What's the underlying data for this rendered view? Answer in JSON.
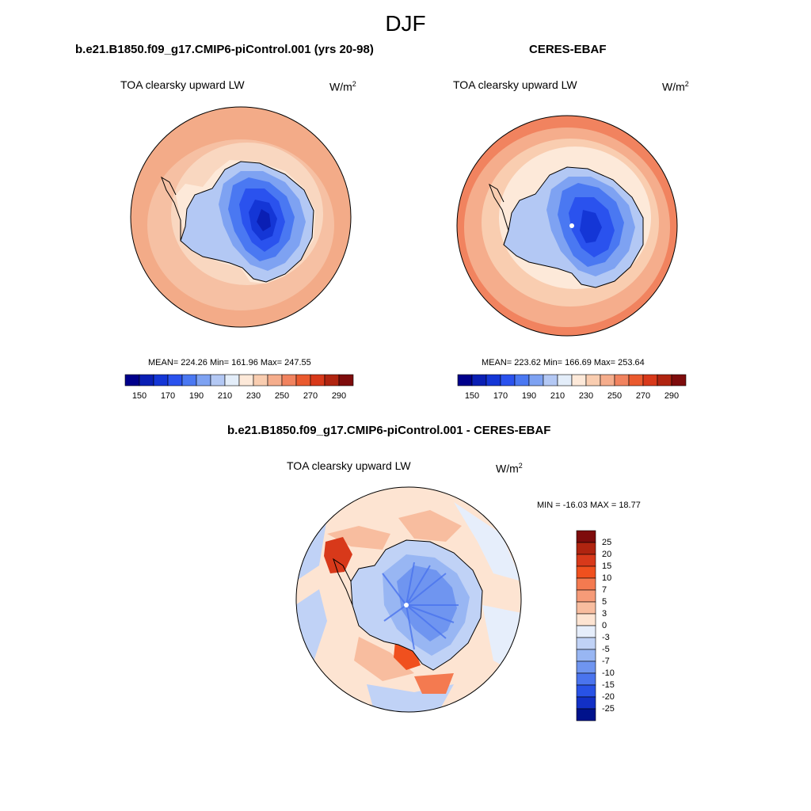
{
  "page_title": "DJF",
  "panels": [
    {
      "title": "b.e21.B1850.f09_g17.CMIP6-piControl.001 (yrs 20-98)",
      "subtitle": "TOA clearsky upward LW",
      "units": "W/m",
      "units_exp": "2",
      "stats": "MEAN= 224.26  Min= 161.96  Max= 247.55"
    },
    {
      "title": "CERES-EBAF",
      "subtitle": "TOA clearsky upward LW",
      "units": "W/m",
      "units_exp": "2",
      "stats": "MEAN= 223.62  Min= 166.69  Max= 253.64"
    },
    {
      "title": "b.e21.B1850.f09_g17.CMIP6-piControl.001 - CERES-EBAF",
      "subtitle": "TOA clearsky upward LW",
      "units": "W/m",
      "units_exp": "2",
      "stats": "MIN = -16.03 MAX =  18.77"
    }
  ],
  "abs_colorbar": {
    "labels": [
      "150",
      "170",
      "190",
      "210",
      "230",
      "250",
      "270",
      "290"
    ],
    "colors": [
      "#00008b",
      "#0a1fb4",
      "#1436d6",
      "#2a52ee",
      "#4a78f2",
      "#7ea2f2",
      "#b3c8f4",
      "#e3edf9",
      "#fde9d9",
      "#f9cdb0",
      "#f5ad8c",
      "#f1835f",
      "#ea5a2e",
      "#d8391a",
      "#b02410",
      "#7e0c0c"
    ]
  },
  "diff_colorbar": {
    "labels": [
      "25",
      "20",
      "15",
      "10",
      "7",
      "5",
      "3",
      "0",
      "-3",
      "-5",
      "-7",
      "-10",
      "-15",
      "-20",
      "-25"
    ],
    "colors": [
      "#7e0c0c",
      "#b02410",
      "#d8391a",
      "#f0501e",
      "#f47a50",
      "#f69b78",
      "#f8bd9f",
      "#fde4d2",
      "#e6eefb",
      "#c0d2f6",
      "#98b6f3",
      "#6f95f0",
      "#4a74ee",
      "#2852e6",
      "#1230c6",
      "#00128c"
    ]
  }
}
